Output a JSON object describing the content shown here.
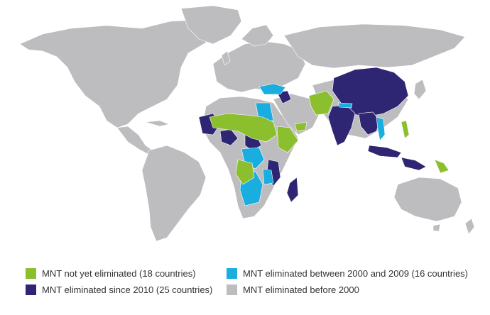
{
  "colors": {
    "ocean": "#ffffff",
    "land": "#bdbdc0",
    "not_yet": "#8cbf2e",
    "since_2010": "#2e2672",
    "between_2000_2009": "#1aaee0",
    "before_2000": "#bdbdc0"
  },
  "legend": [
    {
      "key": "not_yet",
      "label": "MNT not yet eliminated (18 countries)",
      "color": "#8cbf2e"
    },
    {
      "key": "between_2000_2009",
      "label": "MNT eliminated between 2000 and 2009 (16 countries)",
      "color": "#1aaee0"
    },
    {
      "key": "since_2010",
      "label": "MNT eliminated since 2010 (25 countries)",
      "color": "#2e2672"
    },
    {
      "key": "before_2000",
      "label": "MNT eliminated before 2000",
      "color": "#bdbdc0"
    }
  ]
}
